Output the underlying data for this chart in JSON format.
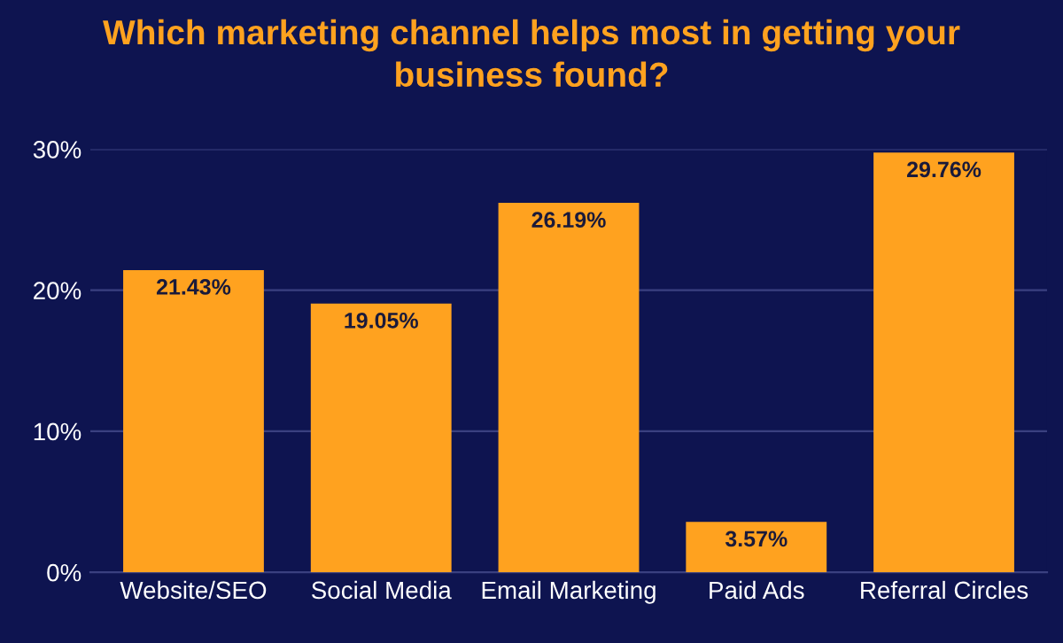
{
  "chart_data": {
    "type": "bar",
    "title": "Which marketing channel helps most in getting your\nbusiness found?",
    "categories": [
      "Website/SEO",
      "Social Media",
      "Email Marketing",
      "Paid Ads",
      "Referral Circles"
    ],
    "values": [
      21.43,
      19.05,
      26.19,
      3.57,
      29.76
    ],
    "value_labels": [
      "21.43%",
      "19.05%",
      "26.19%",
      "3.57%",
      "29.76%"
    ],
    "color": "#ffa21f",
    "ylim": [
      0,
      30
    ],
    "yticks": [
      {
        "value": 0,
        "label": "0%"
      },
      {
        "value": 10,
        "label": "10%"
      },
      {
        "value": 20,
        "label": "20%"
      },
      {
        "value": 30,
        "label": "30%"
      }
    ],
    "grid": "y",
    "legend": false
  }
}
